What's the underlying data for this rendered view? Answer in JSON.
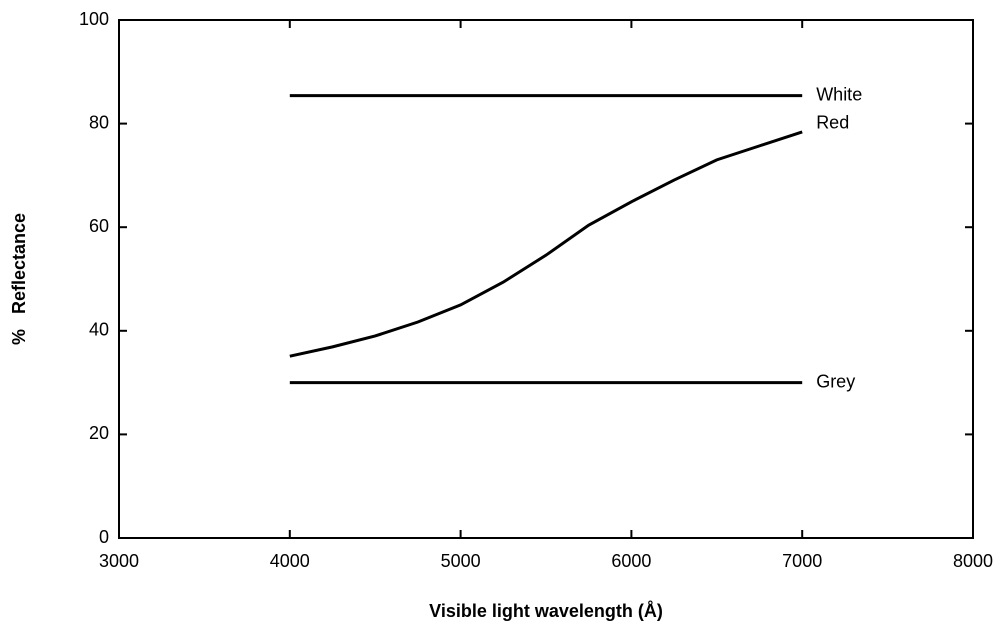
{
  "chart_data": {
    "type": "line",
    "xlabel": "Visible light wavelength (Å)",
    "ylabel": "%   Reflectance",
    "xlim": [
      3000,
      8000
    ],
    "xticks": [
      3000,
      4000,
      5000,
      6000,
      7000,
      8000
    ],
    "ylim": [
      0,
      100
    ],
    "yticks": [
      0,
      20,
      40,
      60,
      80,
      100
    ],
    "grid": false,
    "series": [
      {
        "name": "White",
        "color": "#000000",
        "x": [
          4000,
          7000
        ],
        "values": [
          85.4,
          85.4
        ]
      },
      {
        "name": "Red",
        "color": "#000000",
        "x": [
          4000,
          4250,
          4500,
          4750,
          5000,
          5250,
          5500,
          5750,
          6000,
          6250,
          6500,
          6750,
          7000
        ],
        "values": [
          35.1,
          36.9,
          39,
          41.7,
          45,
          49.4,
          54.6,
          60.4,
          64.9,
          69.1,
          73,
          75.7,
          78.4
        ]
      },
      {
        "name": "Grey",
        "color": "#000000",
        "x": [
          4000,
          7000
        ],
        "values": [
          30,
          30
        ]
      }
    ]
  }
}
